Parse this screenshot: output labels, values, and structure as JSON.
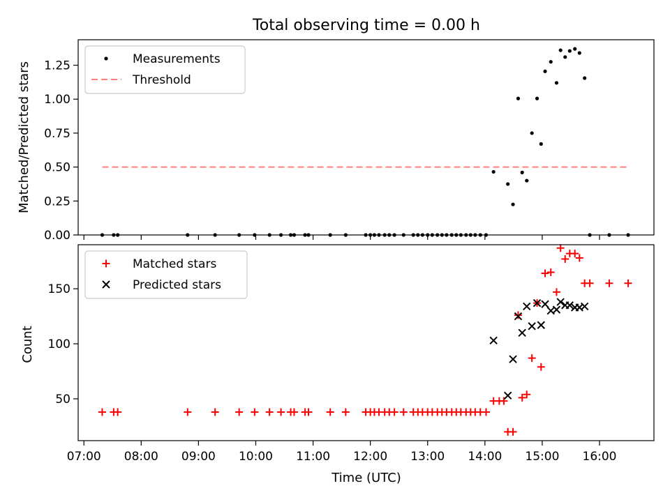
{
  "figure": {
    "title": "Total observing time = 0.00 h"
  },
  "chart_data": [
    {
      "type": "scatter",
      "ylabel": "Matched/Predicted stars",
      "xlabel": "",
      "xlim": [
        6.9,
        16.95
      ],
      "ylim": [
        0,
        1.4375
      ],
      "yticks": [
        0.0,
        0.25,
        0.5,
        0.75,
        1.0,
        1.25
      ],
      "ytick_labels": [
        "0.00",
        "0.25",
        "0.50",
        "0.75",
        "1.00",
        "1.25"
      ],
      "xticks": [
        7,
        8,
        9,
        10,
        11,
        12,
        13,
        14,
        15,
        16
      ],
      "legend_position": "upper-left",
      "series": [
        {
          "name": "Measurements",
          "marker": "dot",
          "color": "#000000",
          "points": [
            [
              7.32,
              0
            ],
            [
              7.52,
              0
            ],
            [
              7.59,
              0
            ],
            [
              8.81,
              0
            ],
            [
              9.29,
              0
            ],
            [
              9.71,
              0
            ],
            [
              9.98,
              0
            ],
            [
              10.24,
              0
            ],
            [
              10.44,
              0
            ],
            [
              10.61,
              0
            ],
            [
              10.67,
              0
            ],
            [
              10.86,
              0
            ],
            [
              10.92,
              0
            ],
            [
              11.3,
              0
            ],
            [
              11.57,
              0
            ],
            [
              11.92,
              0
            ],
            [
              12.0,
              0
            ],
            [
              12.07,
              0
            ],
            [
              12.15,
              0
            ],
            [
              12.25,
              0
            ],
            [
              12.33,
              0
            ],
            [
              12.42,
              0
            ],
            [
              12.58,
              0
            ],
            [
              12.75,
              0
            ],
            [
              12.83,
              0
            ],
            [
              12.91,
              0
            ],
            [
              13.0,
              0
            ],
            [
              13.08,
              0
            ],
            [
              13.17,
              0
            ],
            [
              13.25,
              0
            ],
            [
              13.33,
              0
            ],
            [
              13.42,
              0
            ],
            [
              13.5,
              0
            ],
            [
              13.58,
              0
            ],
            [
              13.67,
              0
            ],
            [
              13.75,
              0
            ],
            [
              13.83,
              0
            ],
            [
              13.92,
              0
            ],
            [
              14.02,
              0
            ],
            [
              14.15,
              0.465
            ],
            [
              14.4,
              0.375
            ],
            [
              14.49,
              0.225
            ],
            [
              14.58,
              1.005
            ],
            [
              14.65,
              0.46
            ],
            [
              14.73,
              0.4
            ],
            [
              14.82,
              0.75
            ],
            [
              14.91,
              1.005
            ],
            [
              14.98,
              0.67
            ],
            [
              15.05,
              1.205
            ],
            [
              15.15,
              1.275
            ],
            [
              15.25,
              1.12
            ],
            [
              15.32,
              1.36
            ],
            [
              15.4,
              1.31
            ],
            [
              15.48,
              1.355
            ],
            [
              15.57,
              1.37
            ],
            [
              15.65,
              1.34
            ],
            [
              15.74,
              1.155
            ],
            [
              15.83,
              0
            ],
            [
              16.17,
              0
            ],
            [
              16.5,
              0
            ]
          ]
        },
        {
          "name": "Threshold",
          "marker": "dashed-line",
          "color": "#ff7f7f",
          "x": [
            7.32,
            16.5
          ],
          "y": [
            0.5,
            0.5
          ]
        }
      ]
    },
    {
      "type": "scatter",
      "ylabel": "Count",
      "xlabel": "Time (UTC)",
      "xlim": [
        6.9,
        16.95
      ],
      "ylim": [
        12,
        190
      ],
      "yticks": [
        50,
        100,
        150
      ],
      "ytick_labels": [
        "50",
        "100",
        "150"
      ],
      "xticks": [
        7,
        8,
        9,
        10,
        11,
        12,
        13,
        14,
        15,
        16
      ],
      "xtick_labels": [
        "07:00",
        "08:00",
        "09:00",
        "10:00",
        "11:00",
        "12:00",
        "13:00",
        "14:00",
        "15:00",
        "16:00"
      ],
      "legend_position": "upper-left",
      "series": [
        {
          "name": "Matched stars",
          "marker": "plus",
          "color": "#ff0000",
          "points": [
            [
              7.32,
              38
            ],
            [
              7.52,
              38
            ],
            [
              7.59,
              38
            ],
            [
              8.81,
              38
            ],
            [
              9.29,
              38
            ],
            [
              9.71,
              38
            ],
            [
              9.98,
              38
            ],
            [
              10.24,
              38
            ],
            [
              10.44,
              38
            ],
            [
              10.61,
              38
            ],
            [
              10.67,
              38
            ],
            [
              10.86,
              38
            ],
            [
              10.92,
              38
            ],
            [
              11.3,
              38
            ],
            [
              11.57,
              38
            ],
            [
              11.92,
              38
            ],
            [
              12.0,
              38
            ],
            [
              12.07,
              38
            ],
            [
              12.15,
              38
            ],
            [
              12.25,
              38
            ],
            [
              12.33,
              38
            ],
            [
              12.42,
              38
            ],
            [
              12.58,
              38
            ],
            [
              12.75,
              38
            ],
            [
              12.83,
              38
            ],
            [
              12.91,
              38
            ],
            [
              13.0,
              38
            ],
            [
              13.08,
              38
            ],
            [
              13.17,
              38
            ],
            [
              13.25,
              38
            ],
            [
              13.33,
              38
            ],
            [
              13.42,
              38
            ],
            [
              13.5,
              38
            ],
            [
              13.58,
              38
            ],
            [
              13.67,
              38
            ],
            [
              13.75,
              38
            ],
            [
              13.83,
              38
            ],
            [
              13.92,
              38
            ],
            [
              14.02,
              38
            ],
            [
              14.15,
              48
            ],
            [
              14.25,
              48
            ],
            [
              14.33,
              48
            ],
            [
              14.4,
              20
            ],
            [
              14.49,
              20
            ],
            [
              14.58,
              126
            ],
            [
              14.65,
              51
            ],
            [
              14.73,
              54
            ],
            [
              14.82,
              87
            ],
            [
              14.91,
              137
            ],
            [
              14.98,
              79
            ],
            [
              15.05,
              164
            ],
            [
              15.15,
              165
            ],
            [
              15.25,
              147
            ],
            [
              15.32,
              187
            ],
            [
              15.4,
              177
            ],
            [
              15.48,
              182
            ],
            [
              15.57,
              182
            ],
            [
              15.65,
              178
            ],
            [
              15.74,
              155
            ],
            [
              15.83,
              155
            ],
            [
              16.17,
              155
            ],
            [
              16.5,
              155
            ]
          ]
        },
        {
          "name": "Predicted stars",
          "marker": "x",
          "color": "#000000",
          "points": [
            [
              14.15,
              103
            ],
            [
              14.4,
              53
            ],
            [
              14.49,
              86
            ],
            [
              14.58,
              125
            ],
            [
              14.65,
              110
            ],
            [
              14.73,
              134
            ],
            [
              14.82,
              116
            ],
            [
              14.91,
              137
            ],
            [
              14.98,
              117
            ],
            [
              15.05,
              136
            ],
            [
              15.15,
              130
            ],
            [
              15.25,
              131
            ],
            [
              15.32,
              138
            ],
            [
              15.4,
              135
            ],
            [
              15.48,
              135
            ],
            [
              15.57,
              133
            ],
            [
              15.65,
              133
            ],
            [
              15.74,
              134
            ]
          ]
        }
      ]
    }
  ]
}
